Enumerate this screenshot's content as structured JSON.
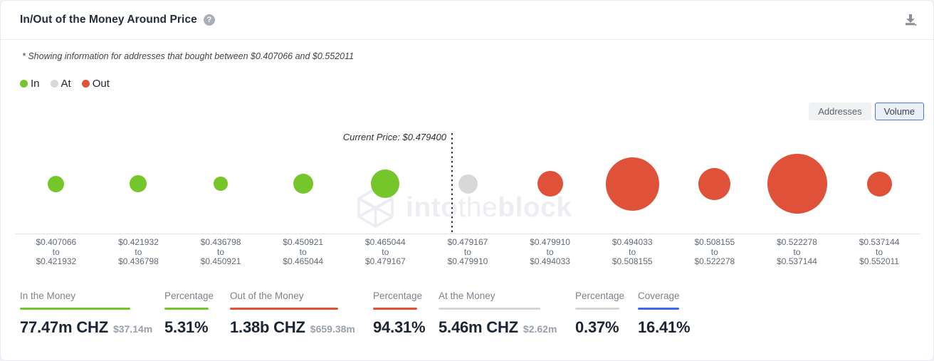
{
  "header": {
    "title": "In/Out of the Money Around Price"
  },
  "note": {
    "text": "* Showing information for addresses that bought between $0.407066 and $0.552011"
  },
  "legend": {
    "items": [
      {
        "label": "In",
        "color": "#74c62a"
      },
      {
        "label": "At",
        "color": "#d8d8d8"
      },
      {
        "label": "Out",
        "color": "#e0513a"
      }
    ]
  },
  "view_toggle": {
    "options": [
      {
        "label": "Addresses",
        "selected": false
      },
      {
        "label": "Volume",
        "selected": true
      }
    ]
  },
  "chart_data": {
    "type": "bubble",
    "title": "In/Out of the Money Around Price",
    "view": "Volume",
    "current_price_label": "Current Price: $0.479400",
    "current_price": "$0.479400",
    "range_separator": "to",
    "colors": {
      "in": "#74c62a",
      "at": "#d8d8d8",
      "out": "#e0513a"
    },
    "buckets": [
      {
        "from": "$0.407066",
        "to": "$0.421932",
        "status": "in",
        "radius_px": 11.5
      },
      {
        "from": "$0.421932",
        "to": "$0.436798",
        "status": "in",
        "radius_px": 12
      },
      {
        "from": "$0.436798",
        "to": "$0.450921",
        "status": "in",
        "radius_px": 10
      },
      {
        "from": "$0.450921",
        "to": "$0.465044",
        "status": "in",
        "radius_px": 14
      },
      {
        "from": "$0.465044",
        "to": "$0.479167",
        "status": "in",
        "radius_px": 20
      },
      {
        "from": "$0.479167",
        "to": "$0.479910",
        "status": "at",
        "radius_px": 13.5
      },
      {
        "from": "$0.479910",
        "to": "$0.494033",
        "status": "out",
        "radius_px": 18
      },
      {
        "from": "$0.494033",
        "to": "$0.508155",
        "status": "out",
        "radius_px": 37.5
      },
      {
        "from": "$0.508155",
        "to": "$0.522278",
        "status": "out",
        "radius_px": 22.5
      },
      {
        "from": "$0.522278",
        "to": "$0.537144",
        "status": "out",
        "radius_px": 42
      },
      {
        "from": "$0.537144",
        "to": "$0.552011",
        "status": "out",
        "radius_px": 17.5
      }
    ]
  },
  "stats": {
    "groups": [
      {
        "label": "In the Money",
        "value": "77.47m CHZ",
        "sub_value": "$37.14m",
        "underline_color": "#74c62a"
      },
      {
        "label": "Percentage",
        "value": "5.31%",
        "sub_value": "",
        "underline_color": "#74c62a"
      },
      {
        "label": "Out of the Money",
        "value": "1.38b CHZ",
        "sub_value": "$659.38m",
        "underline_color": "#e0513a"
      },
      {
        "label": "Percentage",
        "value": "94.31%",
        "sub_value": "",
        "underline_color": "#e0513a"
      },
      {
        "label": "At the Money",
        "value": "5.46m CHZ",
        "sub_value": "$2.62m",
        "underline_color": "#d3d6db"
      },
      {
        "label": "Percentage",
        "value": "0.37%",
        "sub_value": "",
        "underline_color": "#d3d6db"
      },
      {
        "label": "Coverage",
        "value": "16.41%",
        "sub_value": "",
        "underline_color": "#3e68f0"
      }
    ]
  },
  "watermark": {
    "part1": "into",
    "part2": "the",
    "part3": "block"
  }
}
